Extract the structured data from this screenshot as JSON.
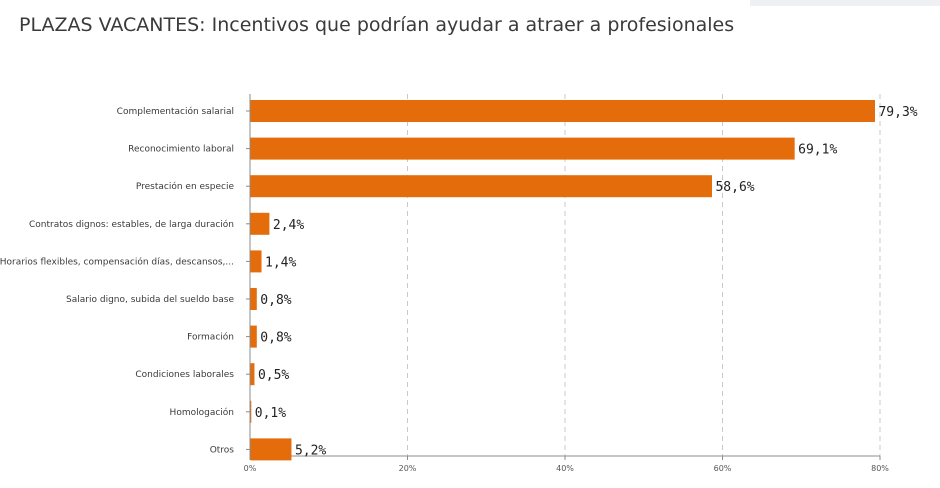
{
  "page": {
    "title": "PLAZAS VACANTES: Incentivos que podrían ayudar a atraer a profesionales"
  },
  "chart_data": {
    "type": "bar",
    "orientation": "horizontal",
    "title": "",
    "xlabel": "",
    "ylabel": "",
    "categories": [
      "Complementación salarial",
      "Reconocimiento laboral",
      "Prestación en especie",
      "Contratos dignos: estables, de larga duración",
      "Horarios flexibles, compensación días, descansos,...",
      "Salario digno, subida del sueldo base",
      "Formación",
      "Condiciones laborales",
      "Homologación",
      "Otros"
    ],
    "values": [
      79.3,
      69.1,
      58.6,
      2.4,
      1.4,
      0.8,
      0.8,
      0.5,
      0.1,
      5.2
    ],
    "data_labels": [
      "79,3%",
      "69,1%",
      "58,6%",
      "2,4%",
      "1,4%",
      "0,8%",
      "0,8%",
      "0,5%",
      "0,1%",
      "5,2%"
    ],
    "x_ticks": [
      0,
      20,
      40,
      60,
      80
    ],
    "x_tick_labels": [
      "0%",
      "20%",
      "40%",
      "60%",
      "80%"
    ],
    "xlim": [
      0,
      80
    ],
    "grid": "vertical dashed",
    "legend": "none",
    "colors": {
      "bar": "#E46C0A",
      "grid": "#c9c9c9",
      "axis": "#8c8c8c",
      "text": "#3a3a3a"
    }
  }
}
